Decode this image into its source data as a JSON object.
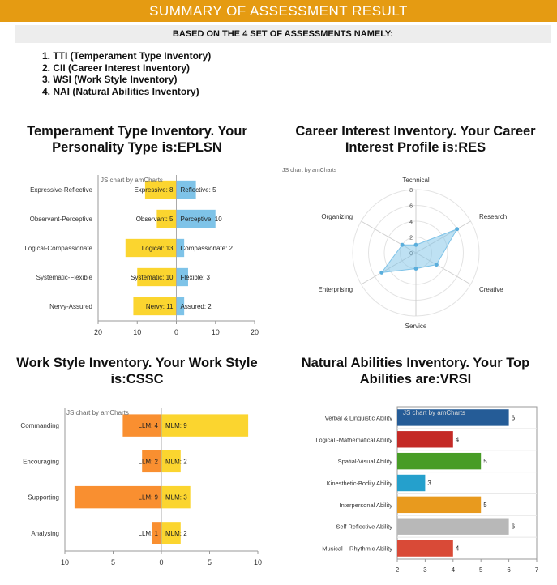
{
  "header": {
    "title": "SUMMARY OF ASSESSMENT RESULT",
    "subtitle": "BASED ON THE 4 SET OF ASSESSMENTS NAMELY:"
  },
  "assessments": [
    "1. TTI (Temperament Type Inventory)",
    "2. CII (Career Interest Inventory)",
    "3. WSI (Work Style Inventory)",
    "4. NAI (Natural Abilities Inventory)"
  ],
  "colors": {
    "banner": "#E59B12",
    "tti_left": "#FBD52F",
    "tti_right": "#7EC3E8",
    "radar": "#7EC3E8",
    "wsi_left": "#F98F30",
    "wsi_right": "#FBD52F"
  },
  "chart_data": [
    {
      "type": "bar",
      "orientation": "horizontal-diverging",
      "title": "Temperament Type Inventory. Your Personality Type is:EPLSN",
      "watermark": "JS chart by amCharts",
      "categories": [
        "Expressive-Reflective",
        "Observant-Perceptive",
        "Logical-Compassionate",
        "Systematic-Flexible",
        "Nervy-Assured"
      ],
      "series": [
        {
          "labels": [
            "Expressive: 8",
            "Observant: 5",
            "Logical: 13",
            "Systematic: 10",
            "Nervy: 11"
          ],
          "values": [
            8,
            5,
            13,
            10,
            11
          ]
        },
        {
          "labels": [
            "Reflective: 5",
            "Perceptive: 10",
            "Compassionate: 2",
            "Flexible: 3",
            "Assured: 2"
          ],
          "values": [
            5,
            10,
            2,
            3,
            2
          ]
        }
      ],
      "xlim": [
        -20,
        20
      ],
      "ticks": [
        "20",
        "10",
        "0",
        "10",
        "20"
      ]
    },
    {
      "type": "radar",
      "title": "Career Interest Inventory. Your Career Interest Profile is:RES",
      "watermark": "JS chart by amCharts",
      "categories": [
        "Technical",
        "Research",
        "Creative",
        "Service",
        "Enterprising",
        "Organizing"
      ],
      "values": [
        1,
        6,
        3,
        2,
        5,
        2
      ],
      "rlim": [
        0,
        8
      ],
      "ticks": [
        "0",
        "2",
        "4",
        "6",
        "8"
      ]
    },
    {
      "type": "bar",
      "orientation": "horizontal-diverging",
      "title": "Work Style Inventory. Your Work Style is:CSSC",
      "watermark": "JS chart by amCharts",
      "categories": [
        "Commanding",
        "Encouraging",
        "Supporting",
        "Analysing"
      ],
      "series": [
        {
          "labels": [
            "LLM: 4",
            "LLM: 2",
            "LLM: 9",
            "LLM: 1"
          ],
          "values": [
            4,
            2,
            9,
            1
          ]
        },
        {
          "labels": [
            "MLM: 9",
            "MLM: 2",
            "MLM: 3",
            "MLM: 2"
          ],
          "values": [
            9,
            2,
            3,
            2
          ]
        }
      ],
      "xlim": [
        -10,
        10
      ],
      "ticks": [
        "10",
        "5",
        "0",
        "5",
        "10"
      ]
    },
    {
      "type": "bar",
      "orientation": "horizontal",
      "title": "Natural Abilities Inventory. Your Top Abilities are:VRSI",
      "watermark": "JS chart by amCharts",
      "categories": [
        "Verbal & Linguistic Ability",
        "Logical -Mathematical Ability",
        "Spatial-Visual Ability",
        "Kinesthetic-Bodily Ability",
        "Interpersonal Ability",
        "Self Reflective Ability",
        "Musical – Rhythmic Ability"
      ],
      "values": [
        6,
        4,
        5,
        3,
        5,
        6,
        4
      ],
      "colors": [
        "#255C97",
        "#C42A26",
        "#479C25",
        "#25A0CC",
        "#E89A1E",
        "#B8B8B8",
        "#D94A37"
      ],
      "xlim": [
        2,
        7
      ],
      "ticks": [
        "2",
        "3",
        "4",
        "5",
        "6",
        "7"
      ]
    }
  ]
}
